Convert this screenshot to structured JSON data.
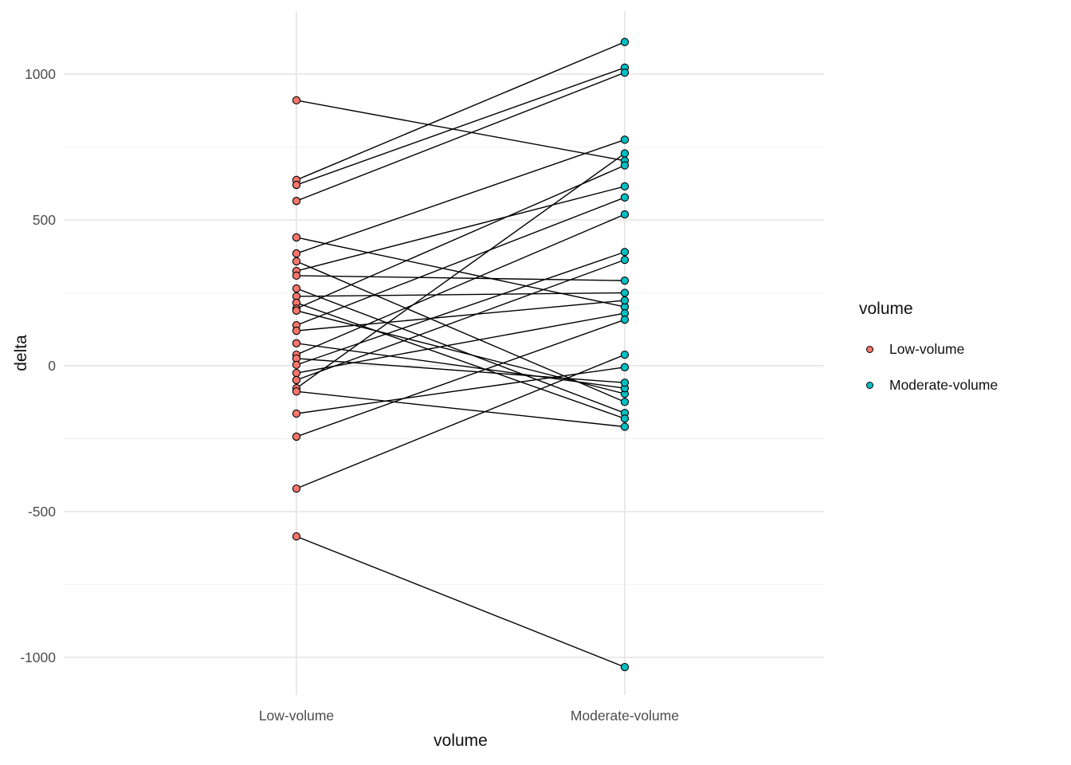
{
  "chart_data": {
    "type": "scatter",
    "variant": "paired slope chart: points at two categorical x positions joined by straight black segments (one segment per paired observation)",
    "title": "",
    "xlabel": "volume",
    "ylabel": "delta",
    "x_categories": [
      "Low-volume",
      "Moderate-volume"
    ],
    "yticks": [
      1000,
      500,
      0,
      -500,
      -1000
    ],
    "yticks_minor": [
      750,
      250,
      -250,
      -750
    ],
    "ylim": [
      -1140,
      1215
    ],
    "grid": "white panel background; light-gray horizontal major and minor gridlines; vertical gridlines at each category; no axis lines or tick marks",
    "legend": {
      "title": "volume",
      "position": "right",
      "entries": [
        {
          "label": "Low-volume",
          "color": "#F8766D"
        },
        {
          "label": "Moderate-volume",
          "color": "#00BFC4"
        }
      ]
    },
    "style": {
      "point_fill_low": "#F8766D",
      "point_fill_moderate": "#00BFC4",
      "point_stroke": "#000000",
      "line_color": "#000000",
      "major_grid_color": "#E7E7E7",
      "minor_grid_color": "#F2F2F2",
      "tick_label_color": "#4D4D4D"
    },
    "pairs": [
      {
        "low": 910,
        "moderate": 703
      },
      {
        "low": 637,
        "moderate": 1110
      },
      {
        "low": 620,
        "moderate": 1022
      },
      {
        "low": 565,
        "moderate": 1005
      },
      {
        "low": 440,
        "moderate": 202
      },
      {
        "low": 385,
        "moderate": 775
      },
      {
        "low": 358,
        "moderate": -124
      },
      {
        "low": 325,
        "moderate": 615
      },
      {
        "low": 309,
        "moderate": 292
      },
      {
        "low": 265,
        "moderate": -162
      },
      {
        "low": 238,
        "moderate": 250
      },
      {
        "low": 216,
        "moderate": -181
      },
      {
        "low": 196,
        "moderate": 687
      },
      {
        "low": 189,
        "moderate": -96
      },
      {
        "low": 139,
        "moderate": 577
      },
      {
        "low": 120,
        "moderate": 224
      },
      {
        "low": 77,
        "moderate": -77
      },
      {
        "low": 38,
        "moderate": 519
      },
      {
        "low": 25,
        "moderate": -58
      },
      {
        "low": 3,
        "moderate": 390
      },
      {
        "low": -25,
        "moderate": 180
      },
      {
        "low": -49,
        "moderate": 363
      },
      {
        "low": -77,
        "moderate": 728
      },
      {
        "low": -88,
        "moderate": -209
      },
      {
        "low": -164,
        "moderate": -5
      },
      {
        "low": -243,
        "moderate": 158
      },
      {
        "low": -421,
        "moderate": 38
      },
      {
        "low": -585,
        "moderate": -1033
      }
    ]
  }
}
